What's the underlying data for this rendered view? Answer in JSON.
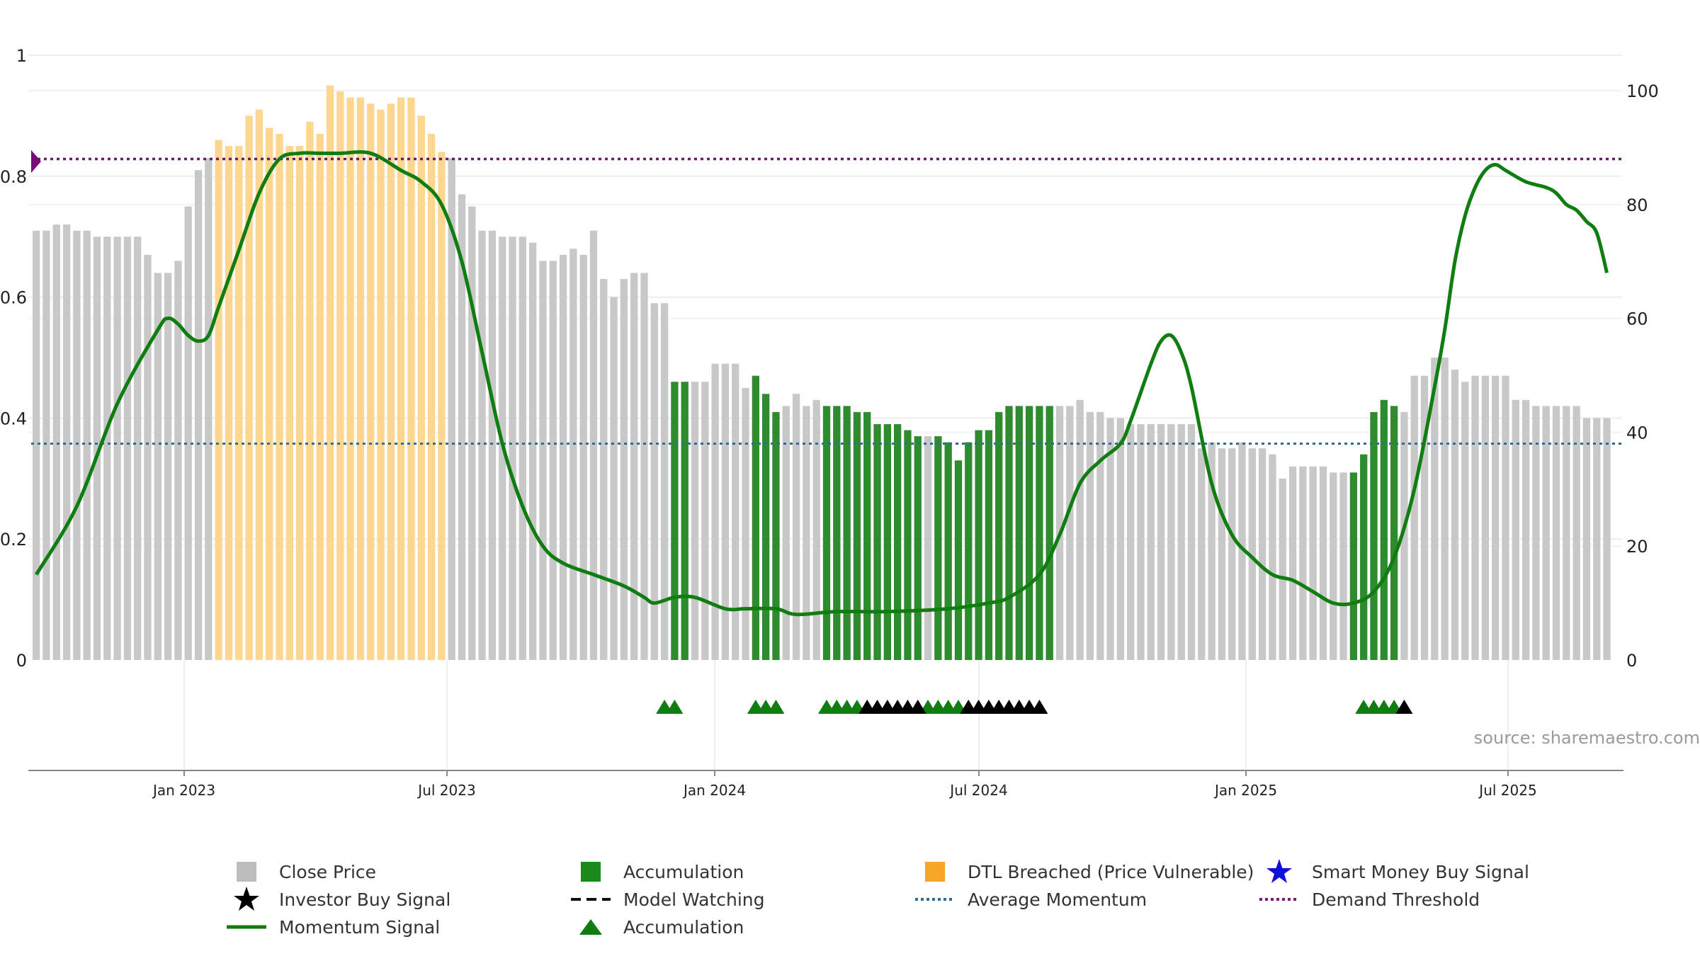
{
  "chart_data": {
    "type": "bar",
    "title": "",
    "source_note": "source: sharemaestro.com",
    "left_axis": {
      "ticks": [
        "0",
        "0.2",
        "0.4",
        "0.6",
        "0.8",
        "1"
      ],
      "range": [
        0,
        1
      ]
    },
    "right_axis": {
      "ticks": [
        "0",
        "20",
        "40",
        "60",
        "80",
        "100"
      ],
      "range": [
        0,
        100
      ]
    },
    "x_axis": {
      "ticks": [
        "Jan 2023",
        "Jul 2023",
        "Jan 2024",
        "Jul 2024",
        "Jan 2025",
        "Jul 2025"
      ]
    },
    "weeks": 157,
    "close_price": [
      0.71,
      0.71,
      0.72,
      0.72,
      0.71,
      0.71,
      0.7,
      0.7,
      0.7,
      0.7,
      0.7,
      0.67,
      0.64,
      0.64,
      0.66,
      0.75,
      0.81,
      0.83,
      0.86,
      0.85,
      0.85,
      0.9,
      0.91,
      0.88,
      0.87,
      0.85,
      0.85,
      0.89,
      0.87,
      0.95,
      0.94,
      0.93,
      0.93,
      0.92,
      0.91,
      0.92,
      0.93,
      0.93,
      0.9,
      0.87,
      0.84,
      0.83,
      0.77,
      0.75,
      0.71,
      0.71,
      0.7,
      0.7,
      0.7,
      0.69,
      0.66,
      0.66,
      0.67,
      0.68,
      0.67,
      0.71,
      0.63,
      0.6,
      0.63,
      0.64,
      0.64,
      0.59,
      0.59,
      0.46,
      0.46,
      0.46,
      0.46,
      0.49,
      0.49,
      0.49,
      0.45,
      0.47,
      0.44,
      0.41,
      0.42,
      0.44,
      0.42,
      0.43,
      0.42,
      0.42,
      0.42,
      0.41,
      0.41,
      0.39,
      0.39,
      0.39,
      0.38,
      0.37,
      0.37,
      0.37,
      0.36,
      0.33,
      0.36,
      0.38,
      0.38,
      0.41,
      0.42,
      0.42,
      0.42,
      0.42,
      0.42,
      0.42,
      0.42,
      0.43,
      0.41,
      0.41,
      0.4,
      0.4,
      0.39,
      0.39,
      0.39,
      0.39,
      0.39,
      0.39,
      0.39,
      0.35,
      0.36,
      0.35,
      0.35,
      0.36,
      0.35,
      0.35,
      0.34,
      0.3,
      0.32,
      0.32,
      0.32,
      0.32,
      0.31,
      0.31,
      0.31,
      0.34,
      0.41,
      0.43,
      0.42,
      0.41,
      0.47,
      0.47,
      0.5,
      0.5,
      0.48,
      0.46,
      0.47,
      0.47,
      0.47,
      0.47,
      0.43,
      0.43,
      0.42,
      0.42,
      0.42,
      0.42,
      0.42,
      0.4,
      0.4,
      0.4
    ],
    "bar_state_ranges": [
      {
        "state": "dtl",
        "from": 18,
        "to": 40
      },
      {
        "state": "accumulation",
        "from": 63,
        "to": 64
      },
      {
        "state": "accumulation",
        "from": 71,
        "to": 73
      },
      {
        "state": "accumulation",
        "from": 78,
        "to": 87
      },
      {
        "state": "accumulation",
        "from": 89,
        "to": 100
      },
      {
        "state": "accumulation",
        "from": 130,
        "to": 134
      }
    ],
    "momentum_signal": [
      [
        0,
        15
      ],
      [
        4,
        27
      ],
      [
        8,
        45
      ],
      [
        12,
        58
      ],
      [
        13,
        60
      ],
      [
        14,
        59
      ],
      [
        15,
        57
      ],
      [
        16,
        56
      ],
      [
        17,
        57
      ],
      [
        18,
        62
      ],
      [
        20,
        72
      ],
      [
        22,
        82
      ],
      [
        24,
        88
      ],
      [
        26,
        89
      ],
      [
        28,
        89
      ],
      [
        30,
        89
      ],
      [
        33,
        89
      ],
      [
        36,
        86
      ],
      [
        38,
        84
      ],
      [
        40,
        80
      ],
      [
        42,
        70
      ],
      [
        44,
        54
      ],
      [
        46,
        38
      ],
      [
        48,
        27
      ],
      [
        50,
        20
      ],
      [
        52,
        17
      ],
      [
        55,
        15
      ],
      [
        58,
        13
      ],
      [
        60,
        11
      ],
      [
        61,
        10
      ],
      [
        63,
        11
      ],
      [
        65,
        11
      ],
      [
        68,
        9
      ],
      [
        70,
        9
      ],
      [
        73,
        9
      ],
      [
        75,
        8
      ],
      [
        79,
        8.5
      ],
      [
        84,
        8.5
      ],
      [
        90,
        9
      ],
      [
        94,
        10
      ],
      [
        96,
        11
      ],
      [
        99,
        15
      ],
      [
        101,
        22
      ],
      [
        103,
        31
      ],
      [
        105,
        35
      ],
      [
        107,
        38
      ],
      [
        108,
        42
      ],
      [
        110,
        52
      ],
      [
        111,
        56
      ],
      [
        112,
        57
      ],
      [
        113,
        54
      ],
      [
        114,
        48
      ],
      [
        116,
        31
      ],
      [
        118,
        22
      ],
      [
        120,
        18
      ],
      [
        122,
        15
      ],
      [
        124,
        14
      ],
      [
        126,
        12
      ],
      [
        128,
        10
      ],
      [
        130,
        10
      ],
      [
        132,
        12
      ],
      [
        134,
        18
      ],
      [
        136,
        30
      ],
      [
        138,
        48
      ],
      [
        139,
        58
      ],
      [
        140,
        70
      ],
      [
        141,
        78
      ],
      [
        142,
        83
      ],
      [
        143,
        86
      ],
      [
        144,
        87
      ],
      [
        145,
        86
      ],
      [
        147,
        84
      ],
      [
        149,
        83
      ],
      [
        150,
        82
      ],
      [
        151,
        80
      ],
      [
        152,
        79
      ],
      [
        153,
        77
      ],
      [
        154,
        75
      ],
      [
        155,
        68
      ]
    ],
    "average_momentum": 38,
    "demand_threshold": 88,
    "accumulation_markers": [
      62,
      63,
      71,
      72,
      73,
      78,
      79,
      80,
      81,
      88,
      89,
      90,
      91,
      131,
      132,
      133,
      134
    ],
    "investor_buy_markers": [
      82,
      83,
      84,
      85,
      86,
      87,
      92,
      93,
      94,
      95,
      96,
      97,
      98,
      99,
      135
    ],
    "legend": [
      {
        "label": "Close Price",
        "symbol": "square",
        "color": "#bdbdbd"
      },
      {
        "label": "Accumulation",
        "symbol": "square",
        "color": "#1a8a1a"
      },
      {
        "label": "DTL Breached (Price Vulnerable)",
        "symbol": "square",
        "color": "#f7a628"
      },
      {
        "label": "Smart Money Buy Signal",
        "symbol": "star",
        "color": "#1010dd"
      },
      {
        "label": "Investor Buy Signal",
        "symbol": "star",
        "color": "#000000"
      },
      {
        "label": "Model Watching",
        "symbol": "dashed-line",
        "color": "#111111"
      },
      {
        "label": "Average Momentum",
        "symbol": "dotted-line",
        "color": "#2e6e96"
      },
      {
        "label": "Demand Threshold",
        "symbol": "dotted-line",
        "color": "#7a1a7a"
      },
      {
        "label": "Momentum Signal",
        "symbol": "line",
        "color": "#0f7d0f"
      },
      {
        "label": "Accumulation",
        "symbol": "triangle",
        "color": "#0f7d0f"
      }
    ],
    "colors": {
      "close": "#c8c8c8",
      "dtl": "#fdd68f",
      "accumulation": "#2e8b2e",
      "momentum": "#0f7d0f",
      "avg": "#2e6e96",
      "threshold": "#6a1a6a",
      "investor": "#000000"
    }
  }
}
